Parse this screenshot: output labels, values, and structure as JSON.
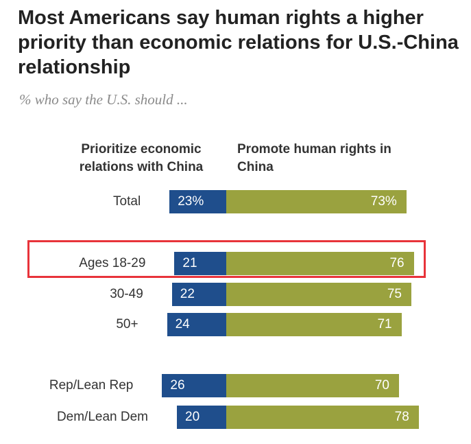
{
  "title": "Most Americans say human rights a higher priority than economic relations for U.S.-China relationship",
  "subtitle": "% who say the U.S. should ...",
  "chart_data": {
    "type": "bar",
    "orientation": "horizontal-diverging",
    "title": "Most Americans say human rights a higher priority than economic relations for U.S.-China relationship",
    "subtitle": "% who say the U.S. should ...",
    "series": [
      {
        "name": "Prioritize economic relations with China",
        "color": "#1f4e8c"
      },
      {
        "name": "Promote human rights in China",
        "color": "#9aa23f"
      }
    ],
    "rows": [
      {
        "label": "Total",
        "econ": 23,
        "econ_label": "23%",
        "rights": 73,
        "rights_label": "73%",
        "group": 0,
        "highlighted": false
      },
      {
        "label": "Ages 18-29",
        "econ": 21,
        "econ_label": "21",
        "rights": 76,
        "rights_label": "76",
        "group": 1,
        "highlighted": true
      },
      {
        "label": "30-49",
        "econ": 22,
        "econ_label": "22",
        "rights": 75,
        "rights_label": "75",
        "group": 1,
        "highlighted": false
      },
      {
        "label": "50+",
        "econ": 24,
        "econ_label": "24",
        "rights": 71,
        "rights_label": "71",
        "group": 1,
        "highlighted": false
      },
      {
        "label": "Rep/Lean Rep",
        "econ": 26,
        "econ_label": "26",
        "rights": 70,
        "rights_label": "70",
        "group": 2,
        "highlighted": false
      },
      {
        "label": "Dem/Lean Dem",
        "econ": 20,
        "econ_label": "20",
        "rights": 78,
        "rights_label": "78",
        "group": 2,
        "highlighted": false
      }
    ],
    "highlight_color": "#e8333a"
  }
}
